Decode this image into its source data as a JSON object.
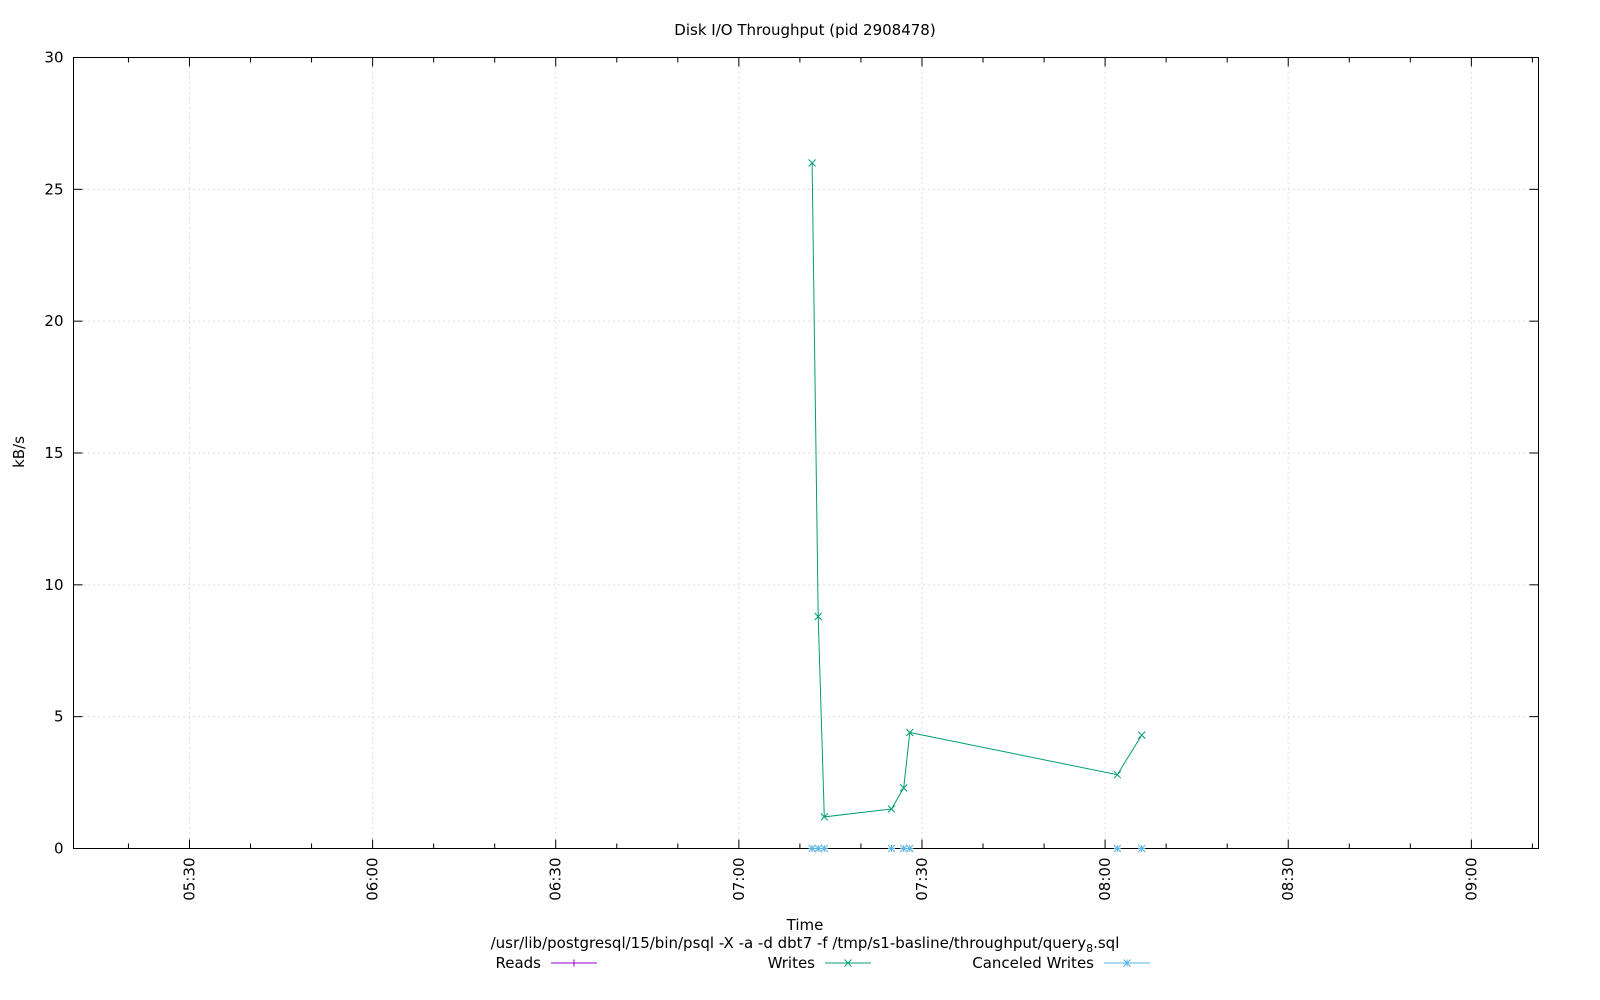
{
  "chart_data": {
    "type": "line",
    "title": "Disk I/O Throughput (pid 2908478)",
    "xlabel": "Time",
    "xlabel_sub": "/usr/lib/postgresql/15/bin/psql -X -a -d dbt7 -f /tmp/s1-basline/throughput/query",
    "xlabel_sub_subscript": "8",
    "xlabel_sub_suffix": ".sql",
    "ylabel": "kB/s",
    "xlim": [
      "05:11",
      "09:11"
    ],
    "ylim": [
      0,
      30
    ],
    "x_ticks": [
      "05:30",
      "06:00",
      "06:30",
      "07:00",
      "07:30",
      "08:00",
      "08:30",
      "09:00"
    ],
    "y_ticks": [
      0,
      5,
      10,
      15,
      20,
      25,
      30
    ],
    "grid": true,
    "legend_position": "bottom",
    "series": [
      {
        "name": "Reads",
        "color": "#9400d3",
        "marker": "plus",
        "points": []
      },
      {
        "name": "Writes",
        "color": "#009e73",
        "marker": "x",
        "points": [
          {
            "x": "07:12",
            "y": 26.0
          },
          {
            "x": "07:13",
            "y": 8.8
          },
          {
            "x": "07:14",
            "y": 1.2
          },
          {
            "x": "07:25",
            "y": 1.5
          },
          {
            "x": "07:27",
            "y": 2.3
          },
          {
            "x": "07:28",
            "y": 4.4
          },
          {
            "x": "08:02",
            "y": 2.8
          },
          {
            "x": "08:06",
            "y": 4.3
          }
        ]
      },
      {
        "name": "Canceled Writes",
        "color": "#56b4e9",
        "marker": "star",
        "points": [
          {
            "x": "07:12",
            "y": 0
          },
          {
            "x": "07:13",
            "y": 0
          },
          {
            "x": "07:14",
            "y": 0
          },
          {
            "x": "07:25",
            "y": 0
          },
          {
            "x": "07:27",
            "y": 0
          },
          {
            "x": "07:28",
            "y": 0
          },
          {
            "x": "08:02",
            "y": 0
          },
          {
            "x": "08:06",
            "y": 0
          }
        ]
      }
    ]
  }
}
